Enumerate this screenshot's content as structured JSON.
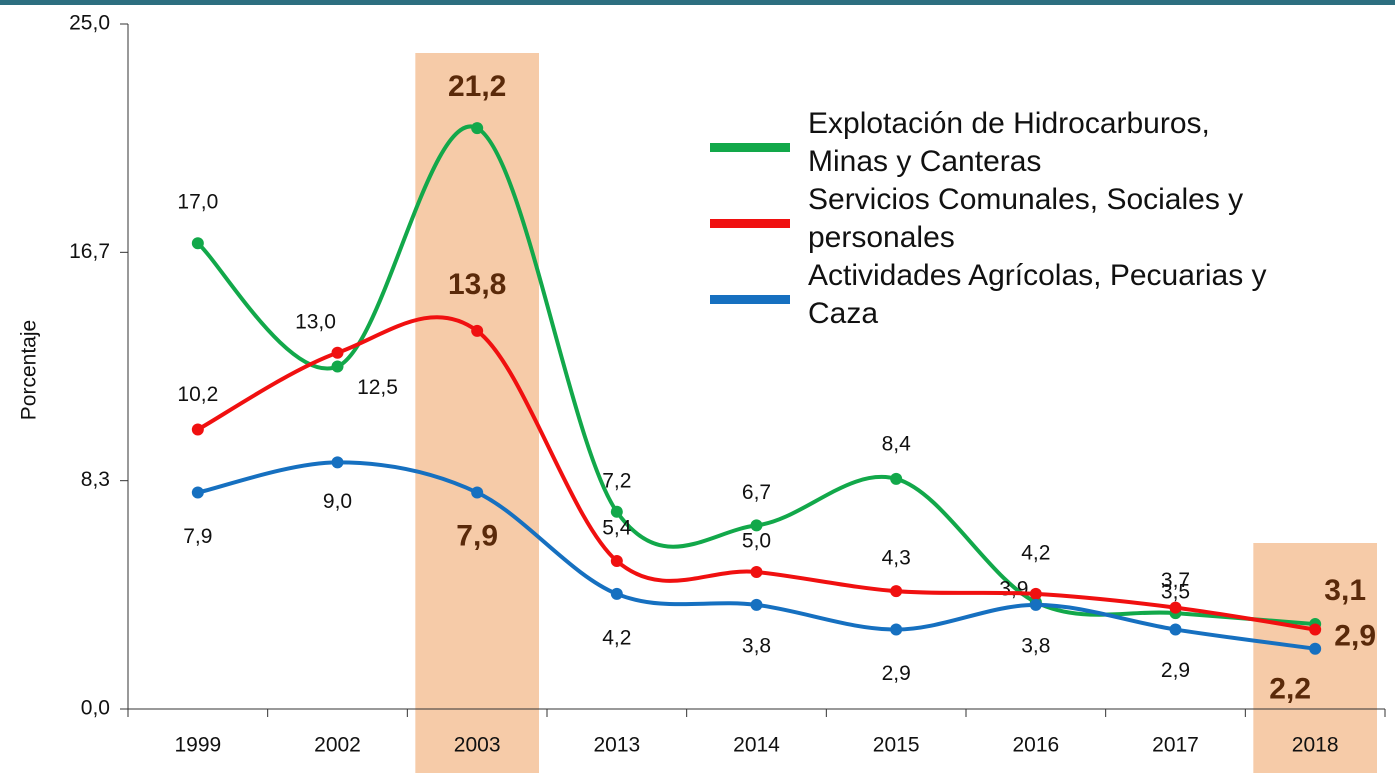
{
  "chart_data": {
    "type": "line",
    "y_label": "Porcentaje",
    "categories": [
      "1999",
      "2002",
      "2003",
      "2013",
      "2014",
      "2015",
      "2016",
      "2017",
      "2018"
    ],
    "highlight": [
      "2003",
      "2018"
    ],
    "series": [
      {
        "name": "Explotación de Hidrocarburos, Minas y Canteras",
        "color": "#12a84a",
        "values": [
          17.0,
          12.5,
          21.2,
          7.2,
          6.7,
          8.4,
          3.9,
          3.5,
          3.1
        ],
        "value_labels": [
          "17,0",
          "12,5",
          "21,2",
          "7,2",
          "6,7",
          "8,4",
          "3,9",
          "3,5",
          "3,1"
        ]
      },
      {
        "name": "Servicios Comunales, Sociales y personales",
        "color": "#f01010",
        "values": [
          10.2,
          13.0,
          13.8,
          5.4,
          5.0,
          4.3,
          4.2,
          3.7,
          2.9
        ],
        "value_labels": [
          "10,2",
          "13,0",
          "13,8",
          "5,4",
          "5,0",
          "4,3",
          "4,2",
          "3,7",
          "2,9"
        ]
      },
      {
        "name": "Actividades Agrícolas, Pecuarias y Caza",
        "color": "#1670c0",
        "values": [
          7.9,
          9.0,
          7.9,
          4.2,
          3.8,
          2.9,
          3.8,
          2.9,
          2.2
        ],
        "value_labels": [
          "7,9",
          "9,0",
          "7,9",
          "4,2",
          "3,8",
          "2,9",
          "3,8",
          "2,9",
          "2,2"
        ]
      }
    ],
    "ylim": [
      0,
      25
    ],
    "yticks": [
      {
        "value": 0,
        "label": "0,0"
      },
      {
        "value": 8.333,
        "label": "8,3"
      },
      {
        "value": 16.667,
        "label": "16,7"
      },
      {
        "value": 25,
        "label": "25,0"
      }
    ]
  }
}
